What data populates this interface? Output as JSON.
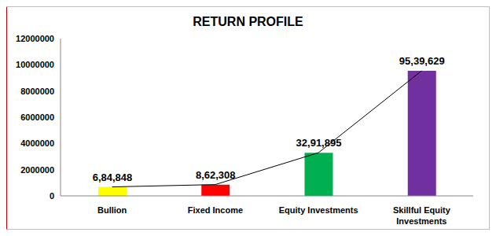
{
  "chart_data": {
    "type": "bar",
    "title": "RETURN PROFILE",
    "categories": [
      "Bullion",
      "Fixed Income",
      "Equity Investments",
      "Skillful Equity Investments"
    ],
    "series": [
      {
        "type": "bar",
        "colors": [
          "#ffff00",
          "#ff0000",
          "#00b050",
          "#7030a0"
        ],
        "values": [
          684848,
          862308,
          3291895,
          9539629
        ],
        "value_labels": [
          "6,84,848",
          "8,62,308",
          "32,91,895",
          "95,39,629"
        ]
      },
      {
        "type": "line",
        "color": "#000000",
        "values": [
          684848,
          862308,
          3291895,
          9539629
        ]
      }
    ],
    "data_labels": true,
    "ylim": [
      0,
      12000000
    ],
    "yticks": [
      0,
      2000000,
      4000000,
      6000000,
      8000000,
      10000000,
      12000000
    ],
    "grid": false
  }
}
